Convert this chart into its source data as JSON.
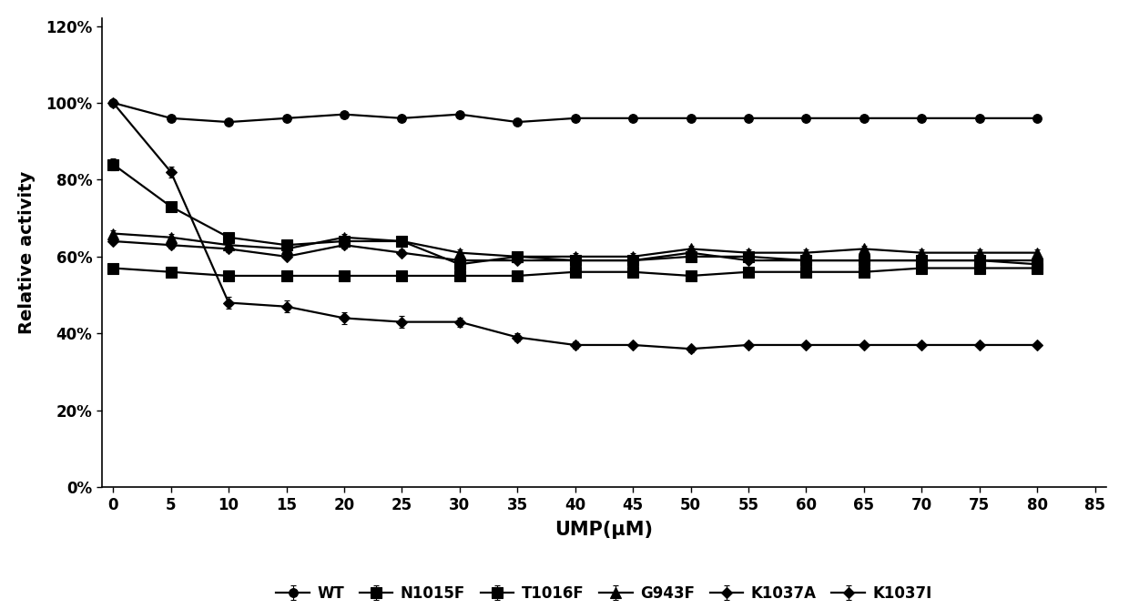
{
  "x": [
    0,
    5,
    10,
    15,
    20,
    25,
    30,
    35,
    40,
    45,
    50,
    55,
    60,
    65,
    70,
    75,
    80
  ],
  "series": {
    "WT": [
      1.0,
      0.96,
      0.95,
      0.96,
      0.97,
      0.96,
      0.97,
      0.95,
      0.96,
      0.96,
      0.96,
      0.96,
      0.96,
      0.96,
      0.96,
      0.96,
      0.96
    ],
    "N1015F": [
      0.57,
      0.56,
      0.55,
      0.55,
      0.55,
      0.55,
      0.55,
      0.55,
      0.56,
      0.56,
      0.55,
      0.56,
      0.56,
      0.56,
      0.57,
      0.57,
      0.57
    ],
    "T1016F": [
      0.84,
      0.73,
      0.65,
      0.63,
      0.64,
      0.64,
      0.58,
      0.6,
      0.59,
      0.59,
      0.6,
      0.6,
      0.59,
      0.59,
      0.59,
      0.59,
      0.58
    ],
    "G943F": [
      0.66,
      0.65,
      0.63,
      0.62,
      0.65,
      0.64,
      0.61,
      0.6,
      0.6,
      0.6,
      0.62,
      0.61,
      0.61,
      0.62,
      0.61,
      0.61,
      0.61
    ],
    "K1037A": [
      0.64,
      0.63,
      0.62,
      0.6,
      0.63,
      0.61,
      0.59,
      0.59,
      0.59,
      0.59,
      0.61,
      0.59,
      0.59,
      0.59,
      0.59,
      0.59,
      0.59
    ],
    "K1037I": [
      1.0,
      0.82,
      0.48,
      0.47,
      0.44,
      0.43,
      0.43,
      0.39,
      0.37,
      0.37,
      0.36,
      0.37,
      0.37,
      0.37,
      0.37,
      0.37,
      0.37
    ]
  },
  "error_bars": {
    "WT": [
      0.008,
      0.004,
      0.004,
      0.004,
      0.004,
      0.004,
      0.004,
      0.004,
      0.004,
      0.004,
      0.004,
      0.004,
      0.004,
      0.004,
      0.004,
      0.004,
      0.004
    ],
    "N1015F": [
      0.004,
      0.004,
      0.004,
      0.004,
      0.004,
      0.004,
      0.004,
      0.004,
      0.004,
      0.004,
      0.004,
      0.004,
      0.004,
      0.004,
      0.004,
      0.004,
      0.004
    ],
    "T1016F": [
      0.015,
      0.012,
      0.008,
      0.008,
      0.008,
      0.008,
      0.008,
      0.008,
      0.008,
      0.008,
      0.008,
      0.008,
      0.008,
      0.008,
      0.008,
      0.008,
      0.008
    ],
    "G943F": [
      0.008,
      0.008,
      0.008,
      0.008,
      0.008,
      0.008,
      0.008,
      0.008,
      0.008,
      0.008,
      0.008,
      0.008,
      0.008,
      0.008,
      0.008,
      0.008,
      0.008
    ],
    "K1037A": [
      0.008,
      0.008,
      0.008,
      0.008,
      0.008,
      0.008,
      0.008,
      0.008,
      0.008,
      0.008,
      0.008,
      0.008,
      0.008,
      0.008,
      0.008,
      0.008,
      0.008
    ],
    "K1037I": [
      0.008,
      0.015,
      0.015,
      0.015,
      0.015,
      0.015,
      0.012,
      0.01,
      0.01,
      0.008,
      0.008,
      0.008,
      0.008,
      0.008,
      0.008,
      0.008,
      0.008
    ]
  },
  "legend_order": [
    "WT",
    "N1015F",
    "T1016F",
    "G943F",
    "K1037A",
    "K1037I"
  ],
  "marker_specs": {
    "WT": {
      "marker": "o",
      "size": 7,
      "filled": true
    },
    "N1015F": {
      "marker": "s",
      "size": 8,
      "filled": true
    },
    "T1016F": {
      "marker": "s",
      "size": 8,
      "filled": true
    },
    "G943F": {
      "marker": "^",
      "size": 8,
      "filled": true
    },
    "K1037A": {
      "marker": "D",
      "size": 6,
      "filled": true
    },
    "K1037I": {
      "marker": "D",
      "size": 6,
      "filled": true
    }
  },
  "ylabel": "Relative activity",
  "xlabel": "UMP(μM)",
  "xlim": [
    -1,
    86
  ],
  "ylim": [
    0.0,
    1.22
  ],
  "yticks": [
    0.0,
    0.2,
    0.4,
    0.6,
    0.8,
    1.0,
    1.2
  ],
  "ytick_labels": [
    "0%",
    "20%",
    "40%",
    "60%",
    "80%",
    "100%",
    "120%"
  ],
  "xticks": [
    0,
    5,
    10,
    15,
    20,
    25,
    30,
    35,
    40,
    45,
    50,
    55,
    60,
    65,
    70,
    75,
    80,
    85
  ],
  "linewidth": 1.6,
  "background_color": "#ffffff"
}
